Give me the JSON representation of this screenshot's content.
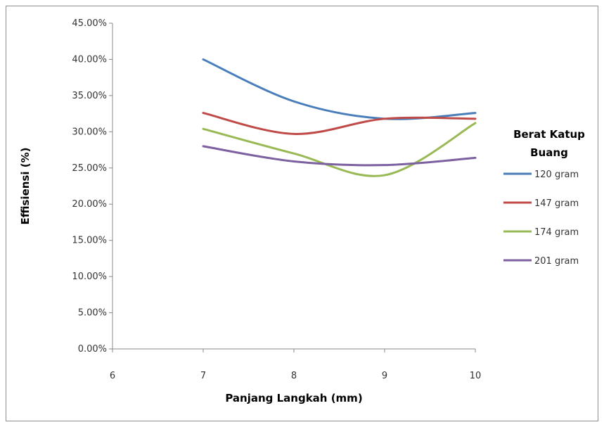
{
  "chart_data": {
    "type": "line",
    "title": "",
    "xlabel": "Panjang Langkah (mm)",
    "ylabel": "Effisiensi (%)",
    "x_ticks": [
      "6",
      "7",
      "8",
      "9",
      "10"
    ],
    "y_ticks": [
      "0.00%",
      "5.00%",
      "10.00%",
      "15.00%",
      "20.00%",
      "25.00%",
      "30.00%",
      "35.00%",
      "40.00%",
      "45.00%"
    ],
    "xlim": [
      6,
      10
    ],
    "ylim": [
      0,
      45
    ],
    "x": [
      7,
      8,
      9,
      10
    ],
    "legend_title": "Berat Katup Buang",
    "legend_position": "right",
    "grid": false,
    "series": [
      {
        "name": "120 gram",
        "color": "#4a7ebb",
        "values": [
          40.0,
          34.2,
          31.8,
          32.6
        ]
      },
      {
        "name": "147 gram",
        "color": "#be4b48",
        "values": [
          32.6,
          29.7,
          31.8,
          31.8
        ]
      },
      {
        "name": "174 gram",
        "color": "#98b954",
        "values": [
          30.4,
          27.0,
          24.0,
          31.2
        ]
      },
      {
        "name": "201 gram",
        "color": "#7d60a0",
        "values": [
          28.0,
          25.9,
          25.4,
          26.4
        ]
      }
    ]
  }
}
